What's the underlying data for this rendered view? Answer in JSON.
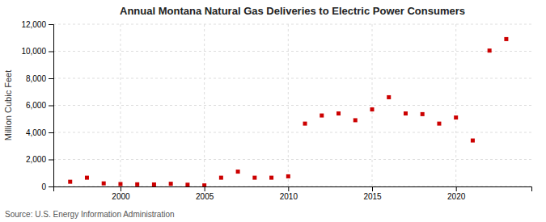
{
  "chart_data": {
    "type": "scatter",
    "title": "Annual Montana Natural Gas Deliveries to Electric Power Consumers",
    "ylabel": "Million Cubic Feet",
    "source": "Source: U.S. Energy Information Administration",
    "x": [
      1997,
      1998,
      1999,
      2000,
      2001,
      2002,
      2003,
      2004,
      2005,
      2006,
      2007,
      2008,
      2009,
      2010,
      2011,
      2012,
      2013,
      2014,
      2015,
      2016,
      2017,
      2018,
      2019,
      2020,
      2021,
      2022,
      2023
    ],
    "values": [
      350,
      650,
      230,
      180,
      160,
      150,
      200,
      130,
      80,
      650,
      1100,
      650,
      650,
      750,
      4650,
      5250,
      5400,
      4900,
      5700,
      6600,
      5400,
      5350,
      4650,
      5100,
      3400,
      10050,
      10900
    ],
    "color": "#cc0000",
    "marker": "square",
    "xlim": [
      1996,
      2024.5
    ],
    "xticks": [
      2000,
      2005,
      2010,
      2015,
      2020
    ],
    "ylim": [
      0,
      12000
    ],
    "yticks": [
      0,
      {
        "value": 2000,
        "label": "2,000"
      },
      {
        "value": 4000,
        "label": "4,000"
      },
      {
        "value": 6000,
        "label": "6,000"
      },
      {
        "value": 8000,
        "label": "8,000"
      },
      {
        "value": 10000,
        "label": "10,000"
      },
      {
        "value": 12000,
        "label": "12,000"
      }
    ],
    "grid": true
  }
}
